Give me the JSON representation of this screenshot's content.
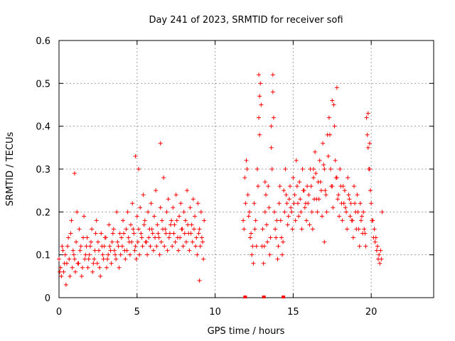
{
  "chart_data": {
    "type": "scatter",
    "title": "Day 241 of 2023, SRMTID for receiver sofi",
    "xlabel": "GPS time / hours",
    "ylabel": "SRMTID / TECUs",
    "xlim": [
      0,
      24
    ],
    "ylim": [
      0,
      0.6
    ],
    "xticks": [
      0,
      5,
      10,
      15,
      20
    ],
    "yticks": [
      0,
      0.1,
      0.2,
      0.3,
      0.4,
      0.5,
      0.6
    ],
    "tick_labels_x": [
      "0",
      "5",
      "10",
      "15",
      "20"
    ],
    "tick_labels_y": [
      "0",
      "0.1",
      "0.2",
      "0.3",
      "0.4",
      "0.5",
      "0.6"
    ],
    "grid": true,
    "marker": "+",
    "series_color": "#ff0000",
    "gap_markers_x": [
      11.9,
      13.1,
      14.35
    ],
    "series": [
      {
        "name": "SRMTID",
        "x": [
          0.0,
          0.1,
          0.2,
          0.3,
          0.4,
          0.5,
          0.6,
          0.7,
          0.8,
          0.9,
          1.0,
          1.1,
          1.2,
          1.3,
          1.4,
          1.5,
          1.6,
          1.7,
          1.8,
          1.9,
          2.0,
          2.1,
          2.2,
          2.3,
          2.4,
          2.5,
          2.6,
          2.7,
          2.8,
          2.9,
          3.0,
          3.1,
          3.2,
          3.3,
          3.4,
          3.5,
          3.6,
          3.7,
          3.8,
          3.9,
          4.0,
          4.1,
          4.2,
          4.3,
          4.4,
          4.5,
          4.6,
          4.7,
          4.8,
          4.9,
          5.0,
          5.1,
          5.2,
          5.3,
          5.4,
          5.5,
          5.6,
          5.7,
          5.8,
          5.9,
          6.0,
          6.1,
          6.2,
          6.3,
          6.4,
          6.5,
          6.6,
          6.7,
          6.8,
          6.9,
          7.0,
          7.1,
          7.2,
          7.3,
          7.4,
          7.5,
          7.6,
          7.7,
          7.8,
          7.9,
          8.0,
          8.1,
          8.2,
          8.3,
          8.4,
          8.5,
          8.6,
          8.7,
          8.8,
          8.9,
          9.0,
          9.1,
          9.2,
          9.3,
          0.05,
          0.15,
          0.25,
          0.35,
          0.45,
          0.55,
          0.65,
          0.75,
          0.85,
          0.95,
          1.05,
          1.15,
          1.25,
          1.35,
          1.45,
          1.55,
          1.65,
          1.75,
          1.85,
          1.95,
          2.05,
          2.15,
          2.25,
          2.35,
          2.45,
          2.55,
          2.65,
          2.75,
          2.85,
          2.95,
          3.05,
          3.15,
          3.25,
          3.35,
          3.45,
          3.55,
          3.65,
          3.75,
          3.85,
          3.95,
          4.05,
          4.15,
          4.25,
          4.35,
          4.45,
          4.55,
          4.65,
          4.75,
          4.85,
          4.95,
          5.05,
          5.15,
          5.25,
          5.35,
          5.45,
          5.55,
          5.65,
          5.75,
          5.85,
          5.95,
          6.05,
          6.15,
          6.25,
          6.35,
          6.45,
          6.55,
          6.65,
          6.75,
          6.85,
          6.95,
          7.05,
          7.15,
          7.25,
          7.35,
          7.45,
          7.55,
          7.65,
          7.75,
          7.85,
          7.95,
          8.05,
          8.15,
          8.25,
          8.35,
          8.45,
          8.55,
          8.65,
          8.75,
          8.85,
          8.95,
          9.05,
          9.15,
          9.25,
          11.8,
          11.9,
          12.0,
          12.1,
          12.2,
          12.3,
          12.4,
          12.5,
          12.6,
          12.7,
          12.8,
          12.9,
          13.0,
          13.1,
          13.2,
          13.3,
          13.4,
          13.5,
          13.6,
          13.7,
          13.8,
          13.9,
          14.0,
          14.1,
          14.2,
          14.3,
          14.4,
          14.5,
          14.6,
          14.7,
          14.8,
          14.9,
          15.0,
          15.1,
          15.2,
          15.3,
          15.4,
          15.5,
          15.6,
          15.7,
          15.8,
          15.9,
          16.0,
          16.1,
          16.2,
          16.3,
          16.4,
          16.5,
          16.6,
          16.7,
          16.8,
          16.9,
          17.0,
          17.1,
          17.2,
          17.3,
          17.4,
          17.5,
          17.6,
          17.7,
          17.8,
          17.9,
          18.0,
          18.1,
          18.2,
          18.3,
          18.4,
          18.5,
          18.6,
          18.7,
          18.8,
          18.9,
          19.0,
          19.1,
          19.2,
          19.3,
          19.4,
          19.5,
          19.6,
          19.7,
          19.8,
          19.9,
          20.0,
          20.1,
          20.2,
          20.3,
          20.4,
          20.5,
          20.6,
          20.7,
          11.85,
          11.95,
          12.05,
          12.15,
          12.25,
          12.35,
          12.45,
          12.55,
          12.65,
          12.75,
          12.85,
          12.95,
          13.05,
          13.15,
          13.25,
          13.35,
          13.45,
          13.55,
          13.65,
          13.75,
          13.85,
          13.95,
          14.05,
          14.15,
          14.25,
          14.35,
          14.45,
          14.55,
          14.65,
          14.75,
          14.85,
          14.95,
          15.05,
          15.15,
          15.25,
          15.35,
          15.45,
          15.55,
          15.65,
          15.75,
          15.85,
          15.95,
          16.05,
          16.15,
          16.25,
          16.35,
          16.45,
          16.55,
          16.65,
          16.75,
          16.85,
          16.95,
          17.05,
          17.15,
          17.25,
          17.35,
          17.45,
          17.55,
          17.65,
          17.75,
          17.85,
          17.95,
          18.05,
          18.15,
          18.25,
          18.35,
          18.45,
          18.55,
          18.65,
          18.75,
          18.85,
          18.95,
          19.05,
          19.15,
          19.25,
          19.35,
          19.45,
          19.55,
          19.65,
          19.75,
          19.85,
          19.95,
          20.05,
          20.15,
          20.25,
          20.35,
          20.45,
          20.55,
          20.65,
          12.8,
          12.85,
          13.6,
          13.7,
          13.2,
          17.8,
          17.5,
          19.8,
          19.9,
          16.3,
          17.0,
          6.5,
          4.9,
          5.1,
          1.0,
          9.0
        ],
        "y": [
          0.09,
          0.07,
          0.12,
          0.06,
          0.1,
          0.08,
          0.14,
          0.05,
          0.18,
          0.11,
          0.09,
          0.13,
          0.08,
          0.16,
          0.12,
          0.07,
          0.19,
          0.1,
          0.14,
          0.09,
          0.12,
          0.16,
          0.08,
          0.11,
          0.18,
          0.13,
          0.07,
          0.15,
          0.1,
          0.12,
          0.14,
          0.09,
          0.17,
          0.11,
          0.13,
          0.16,
          0.1,
          0.2,
          0.12,
          0.15,
          0.14,
          0.18,
          0.11,
          0.16,
          0.2,
          0.13,
          0.17,
          0.22,
          0.15,
          0.12,
          0.19,
          0.16,
          0.21,
          0.14,
          0.24,
          0.18,
          0.13,
          0.2,
          0.16,
          0.22,
          0.15,
          0.19,
          0.25,
          0.17,
          0.14,
          0.21,
          0.18,
          0.28,
          0.16,
          0.2,
          0.23,
          0.15,
          0.18,
          0.21,
          0.17,
          0.24,
          0.14,
          0.19,
          0.22,
          0.16,
          0.2,
          0.18,
          0.25,
          0.15,
          0.21,
          0.17,
          0.23,
          0.19,
          0.14,
          0.22,
          0.16,
          0.2,
          0.13,
          0.18,
          0.06,
          0.05,
          0.11,
          0.08,
          0.03,
          0.12,
          0.09,
          0.15,
          0.07,
          0.1,
          0.06,
          0.2,
          0.08,
          0.11,
          0.05,
          0.14,
          0.09,
          0.12,
          0.07,
          0.1,
          0.13,
          0.06,
          0.09,
          0.15,
          0.08,
          0.11,
          0.05,
          0.12,
          0.09,
          0.14,
          0.07,
          0.1,
          0.12,
          0.08,
          0.15,
          0.11,
          0.09,
          0.13,
          0.07,
          0.1,
          0.12,
          0.15,
          0.09,
          0.11,
          0.14,
          0.1,
          0.13,
          0.16,
          0.11,
          0.09,
          0.13,
          0.1,
          0.15,
          0.12,
          0.17,
          0.13,
          0.1,
          0.14,
          0.12,
          0.16,
          0.11,
          0.14,
          0.12,
          0.15,
          0.1,
          0.13,
          0.16,
          0.12,
          0.15,
          0.11,
          0.14,
          0.17,
          0.12,
          0.15,
          0.13,
          0.18,
          0.11,
          0.14,
          0.16,
          0.12,
          0.15,
          0.13,
          0.17,
          0.11,
          0.15,
          0.13,
          0.16,
          0.12,
          0.1,
          0.15,
          0.12,
          0.14,
          0.09,
          0.18,
          0.28,
          0.32,
          0.24,
          0.2,
          0.15,
          0.12,
          0.22,
          0.18,
          0.3,
          0.42,
          0.5,
          0.12,
          0.08,
          0.2,
          0.17,
          0.26,
          0.1,
          0.35,
          0.48,
          0.2,
          0.14,
          0.09,
          0.22,
          0.18,
          0.1,
          0.25,
          0.3,
          0.22,
          0.19,
          0.26,
          0.2,
          0.28,
          0.24,
          0.32,
          0.22,
          0.27,
          0.2,
          0.3,
          0.25,
          0.22,
          0.26,
          0.24,
          0.3,
          0.2,
          0.28,
          0.34,
          0.23,
          0.27,
          0.32,
          0.25,
          0.36,
          0.3,
          0.24,
          0.38,
          0.42,
          0.3,
          0.26,
          0.45,
          0.32,
          0.28,
          0.24,
          0.3,
          0.22,
          0.26,
          0.25,
          0.2,
          0.28,
          0.23,
          0.22,
          0.18,
          0.26,
          0.2,
          0.24,
          0.16,
          0.22,
          0.19,
          0.2,
          0.15,
          0.42,
          0.35,
          0.3,
          0.22,
          0.18,
          0.16,
          0.14,
          0.12,
          0.1,
          0.11,
          0.2,
          0.16,
          0.22,
          0.3,
          0.19,
          0.14,
          0.1,
          0.08,
          0.16,
          0.12,
          0.26,
          0.38,
          0.45,
          0.16,
          0.12,
          0.24,
          0.13,
          0.21,
          0.14,
          0.3,
          0.42,
          0.16,
          0.18,
          0.12,
          0.26,
          0.14,
          0.13,
          0.2,
          0.24,
          0.17,
          0.23,
          0.21,
          0.16,
          0.22,
          0.18,
          0.26,
          0.19,
          0.23,
          0.16,
          0.25,
          0.21,
          0.18,
          0.22,
          0.17,
          0.26,
          0.16,
          0.23,
          0.29,
          0.2,
          0.23,
          0.27,
          0.19,
          0.31,
          0.25,
          0.2,
          0.33,
          0.38,
          0.26,
          0.21,
          0.4,
          0.28,
          0.23,
          0.19,
          0.26,
          0.18,
          0.22,
          0.21,
          0.16,
          0.24,
          0.19,
          0.18,
          0.14,
          0.22,
          0.16,
          0.2,
          0.12,
          0.18,
          0.15,
          0.16,
          0.12,
          0.38,
          0.3,
          0.25,
          0.18,
          0.14,
          0.13,
          0.11,
          0.09,
          0.08,
          0.09,
          0.52,
          0.47,
          0.4,
          0.52,
          0.27,
          0.49,
          0.46,
          0.43,
          0.36,
          0.3,
          0.13,
          0.36,
          0.33,
          0.3,
          0.29,
          0.04
        ]
      }
    ]
  }
}
